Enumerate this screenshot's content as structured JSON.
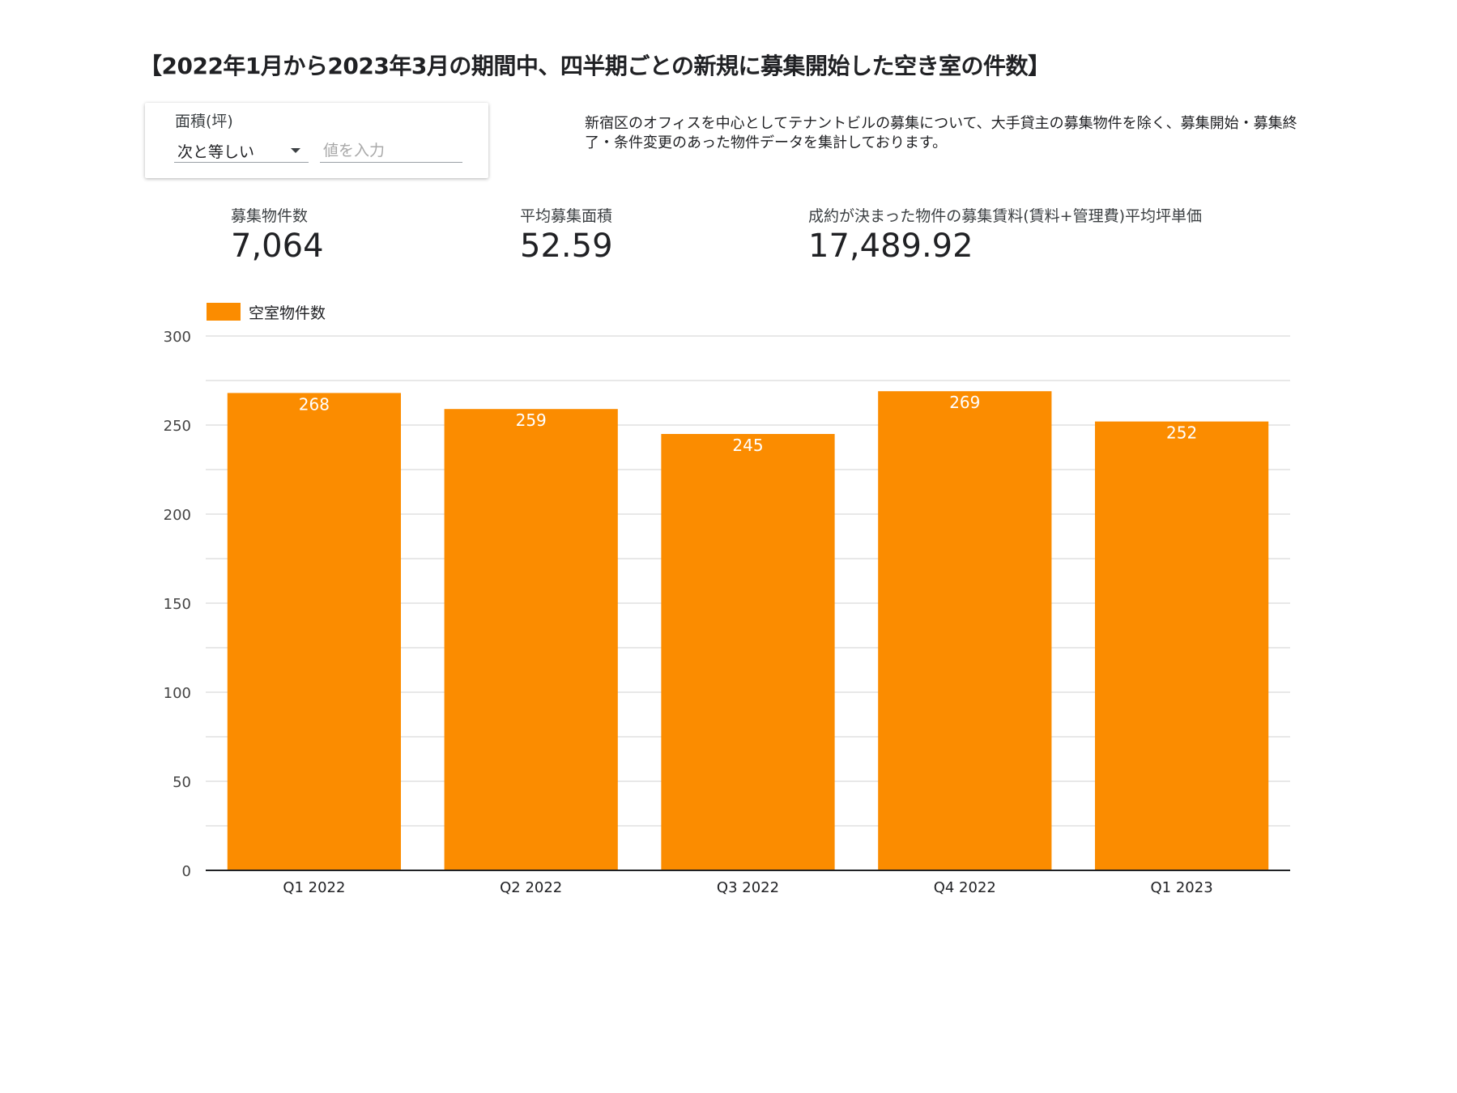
{
  "title": "【2022年1月から2023年3月の期間中、四半期ごとの新規に募集開始した空き室の件数】",
  "filter": {
    "label": "面積(坪)",
    "operator": "次と等しい",
    "placeholder": "値を入力"
  },
  "description": "新宿区のオフィスを中心としてテナントビルの募集について、大手貸主の募集物件を除く、募集開始・募集終了・条件変更のあった物件データを集計しております。",
  "kpis": [
    {
      "label": "募集物件数",
      "value": "7,064"
    },
    {
      "label": "平均募集面積",
      "value": "52.59"
    },
    {
      "label": "成約が決まった物件の募集賃料(賃料+管理費)平均坪単価",
      "value": "17,489.92"
    }
  ],
  "colors": {
    "bar": "#fb8c00",
    "bar_label": "#ffffff",
    "grid": "#e0e0e0",
    "axis": "#202124"
  },
  "chart_data": {
    "type": "bar",
    "categories": [
      "Q1 2022",
      "Q2 2022",
      "Q3 2022",
      "Q4 2022",
      "Q1 2023"
    ],
    "series": [
      {
        "name": "空室物件数",
        "values": [
          268,
          259,
          245,
          269,
          252
        ]
      }
    ],
    "ylim": [
      0,
      300
    ],
    "yticks": [
      0,
      50,
      100,
      150,
      200,
      250,
      300
    ],
    "grid": true,
    "legend": "top-left",
    "data_labels": true
  }
}
